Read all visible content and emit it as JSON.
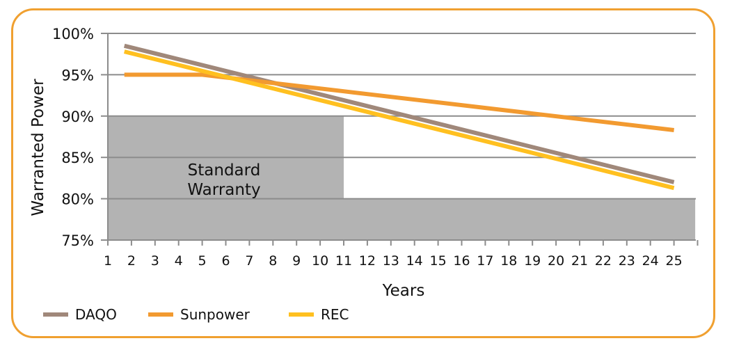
{
  "chart_data": {
    "type": "line",
    "title": "",
    "xlabel": "Years",
    "ylabel": "Warranted Power",
    "ylim": [
      75,
      100
    ],
    "xlim": [
      1,
      25
    ],
    "x_ticks": [
      "1",
      "2",
      "3",
      "4",
      "5",
      "6",
      "7",
      "8",
      "9",
      "10",
      "11",
      "12",
      "13",
      "14",
      "15",
      "16",
      "17",
      "18",
      "19",
      "20",
      "21",
      "22",
      "23",
      "24",
      "25"
    ],
    "y_ticks": [
      "75%",
      "80%",
      "85%",
      "90%",
      "95%",
      "100%"
    ],
    "grid": "horizontal",
    "legend_position": "bottom-left",
    "colors": {
      "frame": "#F0A030",
      "region": "#B3B3B3",
      "grid": "#8C8C8C"
    },
    "regions": [
      {
        "label": "Standard Warranty",
        "x_start": 1,
        "x_end": 11,
        "y_top": 90
      },
      {
        "label": "",
        "x_start": 11,
        "x_end": 25.9,
        "y_top": 80
      }
    ],
    "region_label": [
      "Standard",
      "Warranty"
    ],
    "series": [
      {
        "name": "DAQO",
        "color": "#A0887A",
        "x": [
          1.7,
          25
        ],
        "y": [
          98.5,
          82
        ]
      },
      {
        "name": "Sunpower",
        "color": "#F29A30",
        "x": [
          1.7,
          5,
          11,
          25
        ],
        "y": [
          95,
          95,
          93,
          88.3
        ]
      },
      {
        "name": "REC",
        "color": "#FFC020",
        "x": [
          1.7,
          25
        ],
        "y": [
          97.8,
          81.3
        ]
      }
    ]
  }
}
